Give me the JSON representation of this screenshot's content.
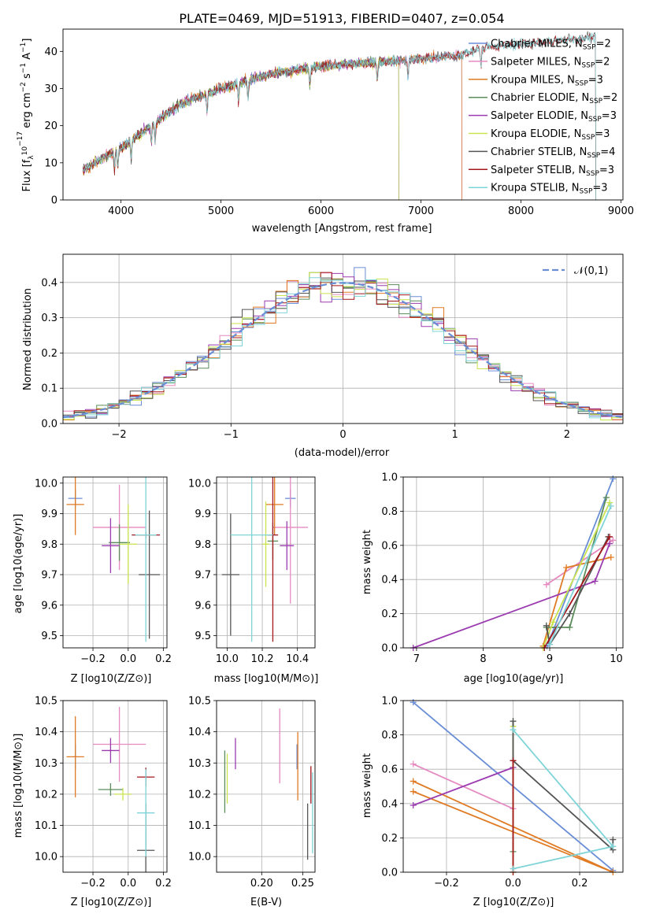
{
  "figure_title": "PLATE=0469, MJD=51913, FIBERID=0407, z=0.054",
  "colors": [
    "#6a8ed6",
    "#e68ac2",
    "#e07b24",
    "#5b8c5a",
    "#9b3bb0",
    "#c9e44e",
    "#555555",
    "#a3161b",
    "#7fd4d8"
  ],
  "chart_data": [
    {
      "id": "spectrum",
      "type": "line",
      "title": "PLATE=0469, MJD=51913, FIBERID=0407, z=0.054",
      "xlabel": "wavelength [Angstrom, rest frame]",
      "ylabel": "Flux [f_λ 10^-17 erg cm^-2 s^-1 A^-1]",
      "xlim": [
        3420,
        9020
      ],
      "ylim": [
        0,
        46
      ],
      "xticks": [
        "4000",
        "5000",
        "6000",
        "7000",
        "8000",
        "9000"
      ],
      "yticks": [
        "0",
        "10",
        "20",
        "30",
        "40"
      ],
      "grid": false,
      "legend_position": "top-right",
      "series": [
        {
          "name": "Chabrier MILES, N_SSP=2",
          "wl_end": 7410
        },
        {
          "name": "Salpeter MILES, N_SSP=2",
          "wl_end": 7410
        },
        {
          "name": "Kroupa MILES, N_SSP=3",
          "wl_end": 7410
        },
        {
          "name": "Chabrier ELODIE, N_SSP=2",
          "wl_end": 6780
        },
        {
          "name": "Salpeter ELODIE, N_SSP=3",
          "wl_end": 6780
        },
        {
          "name": "Kroupa ELODIE, N_SSP=3",
          "wl_end": 6780
        },
        {
          "name": "Chabrier STELIB, N_SSP=4",
          "wl_end": 8750
        },
        {
          "name": "Salpeter STELIB, N_SSP=3",
          "wl_end": 8750
        },
        {
          "name": "Kroupa STELIB, N_SSP=3",
          "wl_end": 8750
        }
      ],
      "continuum": {
        "wl": [
          3620,
          3800,
          4000,
          4300,
          4600,
          5000,
          5500,
          6000,
          6500,
          7000,
          7400,
          7600,
          8000,
          8400,
          8760
        ],
        "flux": [
          8,
          11,
          14,
          20,
          26,
          30,
          34,
          36,
          37,
          38,
          39,
          41,
          42,
          43,
          44
        ]
      }
    },
    {
      "id": "residuals",
      "type": "bar",
      "xlabel": "(data-model)/error",
      "ylabel": "Normed distribution",
      "xlim": [
        -2.5,
        2.5
      ],
      "ylim": [
        0,
        0.48
      ],
      "xticks": [
        "−2",
        "−1",
        "0",
        "1",
        "2"
      ],
      "yticks": [
        "0.0",
        "0.1",
        "0.2",
        "0.3",
        "0.4"
      ],
      "grid": true,
      "legend_position": "top-right",
      "legend_label": "𝒩(0,1)",
      "bin_width": 0.1
    },
    {
      "id": "age_vs_Z",
      "type": "scatter",
      "xlabel": "Z [log10(Z/Z⊙)]",
      "ylabel": "age [log10(age/yr)]",
      "xlim": [
        -0.37,
        0.22
      ],
      "ylim": [
        9.46,
        10.02
      ],
      "xticks": [
        "−0.2",
        "0.0",
        "0.2"
      ],
      "yticks": [
        "9.5",
        "9.6",
        "9.7",
        "9.8",
        "9.9",
        "10.0"
      ],
      "points": [
        {
          "x": -0.3,
          "y": 9.95,
          "xerr": 0.04,
          "yerr": 0.03
        },
        {
          "x": -0.05,
          "y": 9.855,
          "xerr": 0.15,
          "yerr": 0.14
        },
        {
          "x": -0.3,
          "y": 9.93,
          "xerr": 0.05,
          "yerr": 0.1
        },
        {
          "x": -0.05,
          "y": 9.805,
          "xerr": 0.06,
          "yerr": 0.06
        },
        {
          "x": -0.1,
          "y": 9.795,
          "xerr": 0.05,
          "yerr": 0.09
        },
        {
          "x": 0.0,
          "y": 9.8,
          "xerr": 0.05,
          "yerr": 0.13
        },
        {
          "x": 0.12,
          "y": 9.7,
          "xerr": 0.06,
          "yerr": 0.21
        },
        {
          "x": 0.1,
          "y": 9.83,
          "xerr": 0.08,
          "yerr": 0.01
        },
        {
          "x": 0.1,
          "y": 9.83,
          "xerr": 0.06,
          "yerr": 0.35
        }
      ]
    },
    {
      "id": "age_vs_mass",
      "type": "scatter",
      "xlabel": "mass [log10(M/M⊙)]",
      "ylabel": "",
      "xlim": [
        9.94,
        10.5
      ],
      "ylim": [
        9.46,
        10.02
      ],
      "xticks": [
        "10.0",
        "10.2",
        "10.4"
      ],
      "yticks": [
        "9.5",
        "9.6",
        "9.7",
        "9.8",
        "9.9",
        "10.0"
      ],
      "points": [
        {
          "x": 10.36,
          "y": 9.95,
          "xerr": 0.03,
          "yerr": 0.03
        },
        {
          "x": 10.36,
          "y": 9.855,
          "xerr": 0.1,
          "yerr": 0.25
        },
        {
          "x": 10.27,
          "y": 9.93,
          "xerr": 0.05,
          "yerr": 0.1
        },
        {
          "x": 10.26,
          "y": 9.81,
          "xerr": 0.03,
          "yerr": 0.06
        },
        {
          "x": 10.34,
          "y": 9.795,
          "xerr": 0.04,
          "yerr": 0.08
        },
        {
          "x": 10.22,
          "y": 9.8,
          "xerr": 0.02,
          "yerr": 0.14
        },
        {
          "x": 10.02,
          "y": 9.7,
          "xerr": 0.05,
          "yerr": 0.2
        },
        {
          "x": 10.26,
          "y": 9.83,
          "xerr": 0.03,
          "yerr": 0.35
        },
        {
          "x": 10.14,
          "y": 9.83,
          "xerr": 0.12,
          "yerr": 0.35
        }
      ]
    },
    {
      "id": "massweight_vs_age",
      "type": "line",
      "xlabel": "age [log10(age/yr)]",
      "ylabel": "mass weight",
      "xlim": [
        6.8,
        10.1
      ],
      "ylim": [
        0,
        1.0
      ],
      "xticks": [
        "7",
        "8",
        "9",
        "10"
      ],
      "yticks": [
        "0.0",
        "0.2",
        "0.4",
        "0.6",
        "0.8",
        "1.0"
      ],
      "series": [
        {
          "x": [
            8.96,
            9.95
          ],
          "y": [
            0.01,
            0.99
          ]
        },
        {
          "x": [
            8.95,
            9.95
          ],
          "y": [
            0.37,
            0.63
          ]
        },
        {
          "x": [
            8.9,
            9.25,
            9.92
          ],
          "y": [
            0.01,
            0.47,
            0.53
          ]
        },
        {
          "x": [
            8.95,
            9.3,
            9.85
          ],
          "y": [
            0.12,
            0.12,
            0.88
          ]
        },
        {
          "x": [
            6.95,
            9.68,
            9.9
          ],
          "y": [
            0.0,
            0.39,
            0.61
          ]
        },
        {
          "x": [
            8.9,
            9.05,
            9.9
          ],
          "y": [
            0.0,
            0.15,
            0.85
          ]
        },
        {
          "x": [
            8.95,
            9.0,
            9.3,
            9.88
          ],
          "y": [
            0.13,
            0.02,
            0.2,
            0.65
          ]
        },
        {
          "x": [
            8.92,
            9.9
          ],
          "y": [
            0.0,
            0.65
          ]
        },
        {
          "x": [
            9.0,
            9.92
          ],
          "y": [
            0.02,
            0.83
          ]
        }
      ]
    },
    {
      "id": "mass_vs_Z",
      "type": "scatter",
      "xlabel": "Z [log10(Z/Z⊙)]",
      "ylabel": "mass [log10(M/M⊙)]",
      "xlim": [
        -0.37,
        0.22
      ],
      "ylim": [
        9.95,
        10.5
      ],
      "xticks": [
        "−0.2",
        "0.0",
        "0.2"
      ],
      "yticks": [
        "10.0",
        "10.1",
        "10.2",
        "10.3",
        "10.4",
        "10.5"
      ],
      "points": [
        {
          "x": -0.3,
          "y": 10.32,
          "xerr": 0.01,
          "yerr": 0.04
        },
        {
          "x": -0.05,
          "y": 10.36,
          "xerr": 0.15,
          "yerr": 0.12
        },
        {
          "x": -0.3,
          "y": 10.32,
          "xerr": 0.05,
          "yerr": 0.13
        },
        {
          "x": -0.1,
          "y": 10.215,
          "xerr": 0.07,
          "yerr": 0.02
        },
        {
          "x": -0.1,
          "y": 10.34,
          "xerr": 0.05,
          "yerr": 0.04
        },
        {
          "x": -0.03,
          "y": 10.2,
          "xerr": 0.05,
          "yerr": 0.02
        },
        {
          "x": 0.1,
          "y": 10.02,
          "xerr": 0.05,
          "yerr": 0.15
        },
        {
          "x": 0.1,
          "y": 10.255,
          "xerr": 0.05,
          "yerr": 0.03
        },
        {
          "x": 0.1,
          "y": 10.14,
          "xerr": 0.05,
          "yerr": 0.14
        }
      ]
    },
    {
      "id": "mass_vs_EBV",
      "type": "scatter",
      "xlabel": "E(B-V)",
      "ylabel": "",
      "xlim": [
        0.145,
        0.265
      ],
      "ylim": [
        9.95,
        10.5
      ],
      "xticks": [
        "0.20",
        "0.25"
      ],
      "yticks": [
        "10.0",
        "10.1",
        "10.2",
        "10.3",
        "10.4",
        "10.5"
      ],
      "points": [
        {
          "x": 0.243,
          "y": 10.32,
          "xerr": 0,
          "yerr": 0.04
        },
        {
          "x": 0.222,
          "y": 10.355,
          "xerr": 0,
          "yerr": 0.12
        },
        {
          "x": 0.244,
          "y": 10.29,
          "xerr": 0,
          "yerr": 0.11
        },
        {
          "x": 0.155,
          "y": 10.24,
          "xerr": 0,
          "yerr": 0.1
        },
        {
          "x": 0.168,
          "y": 10.33,
          "xerr": 0,
          "yerr": 0.05
        },
        {
          "x": 0.158,
          "y": 10.25,
          "xerr": 0,
          "yerr": 0.08
        },
        {
          "x": 0.256,
          "y": 10.08,
          "xerr": 0,
          "yerr": 0.09
        },
        {
          "x": 0.26,
          "y": 10.23,
          "xerr": 0,
          "yerr": 0.06
        },
        {
          "x": 0.262,
          "y": 10.14,
          "xerr": 0,
          "yerr": 0.13
        }
      ]
    },
    {
      "id": "massweight_vs_Z",
      "type": "line",
      "xlabel": "Z [log10(Z/Z⊙)]",
      "ylabel": "mass weight",
      "xlim": [
        -0.33,
        0.33
      ],
      "ylim": [
        0,
        1.0
      ],
      "xticks": [
        "−0.2",
        "0.0",
        "0.2"
      ],
      "yticks": [
        "0.0",
        "0.2",
        "0.4",
        "0.6",
        "0.8",
        "1.0"
      ],
      "series": [
        {
          "x": [
            -0.3,
            0.3
          ],
          "y": [
            0.99,
            0.01
          ]
        },
        {
          "x": [
            -0.3,
            0.0
          ],
          "y": [
            0.63,
            0.37
          ]
        },
        {
          "x": [
            -0.3,
            0.3,
            -0.3
          ],
          "y": [
            0.53,
            0.0,
            0.47
          ]
        },
        {
          "x": [
            0.0,
            0.0
          ],
          "y": [
            0.12,
            0.88
          ]
        },
        {
          "x": [
            -0.3,
            0.0
          ],
          "y": [
            0.39,
            0.61
          ]
        },
        {
          "x": [
            0.0,
            0.0
          ],
          "y": [
            0.0,
            0.85
          ]
        },
        {
          "x": [
            0.0,
            0.0,
            0.3,
            0.3
          ],
          "y": [
            0.88,
            0.65,
            0.13,
            0.19
          ]
        },
        {
          "x": [
            0.0,
            0.0
          ],
          "y": [
            0.0,
            0.65
          ]
        },
        {
          "x": [
            0.0,
            0.3,
            0.0
          ],
          "y": [
            0.83,
            0.15,
            0.02
          ]
        }
      ]
    }
  ]
}
